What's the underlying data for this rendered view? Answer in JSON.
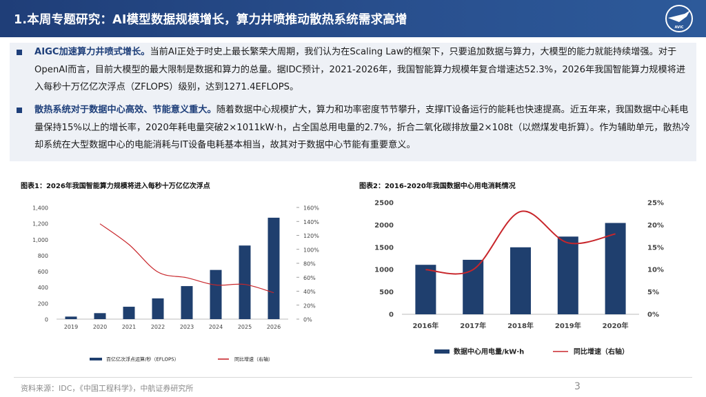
{
  "header": {
    "title": "1.本周专题研究：AI模型数据规模增长，算力井喷推动散热系统需求高增",
    "logo_text": "AVIC"
  },
  "bullets": [
    {
      "highlight": "AIGC加速算力井喷式增长。",
      "text": "当前AI正处于时史上最长繁荣大周期，我们认为在Scaling Law的框架下，只要追加数据与算力，大模型的能力就能持续增强。对于OpenAI而言，目前大模型的最大限制是数据和算力的总量。据IDC预计，2021-2026年，我国智能算力规模年复合增速达52.3%，2026年我国智能算力规模将进入每秒十万亿亿次浮点（ZFLOPS）级别，达到1271.4EFLOPS。"
    },
    {
      "highlight": "散热系统对于数据中心高效、节能意义重大。",
      "text": "随着数据中心规模扩大，算力和功率密度节节攀升，支撑IT设备运行的能耗也快速提高。近五年来，我国数据中心耗电量保持15%以上的增长率，2020年耗电量突破2×1011kW·h，占全国总用电量的2.7%，折合二氧化碳排放量2×108t（以燃煤发电折算）。作为辅助单元，散热冷却系统在大型数据中心的电能消耗与IT设备电耗基本相当，故其对于数据中心节能有重要意义。"
    }
  ],
  "figures": {
    "fig1_title": "图表1：2026年我国智能算力规模将进入每秒十万亿亿次浮点",
    "fig2_title": "图表2：2016-2020年我国数据中心用电消耗情况"
  },
  "chart_data": [
    {
      "type": "bar",
      "title": "图表1：2026年我国智能算力规模将进入每秒十万亿亿次浮点",
      "categories": [
        "2019",
        "2020",
        "2021",
        "2022",
        "2023",
        "2024",
        "2025",
        "2026"
      ],
      "series": [
        {
          "name": "百亿亿次浮点运算/秒（EFLOPS）",
          "type": "bar",
          "axis": "left",
          "values": [
            31.7,
            75,
            155.2,
            259.9,
            414.1,
            616.6,
            922.8,
            1271.4
          ]
        },
        {
          "name": "同比增速（右轴）",
          "type": "line",
          "axis": "right",
          "values": [
            null,
            136.6,
            106.9,
            67.5,
            59.3,
            48.9,
            49.7,
            37.8
          ]
        }
      ],
      "left_ylim": [
        0,
        1400
      ],
      "left_ticks": [
        "0",
        "200",
        "400",
        "600",
        "800",
        "1,000",
        "1,200",
        "1,400"
      ],
      "right_ylim": [
        0,
        160
      ],
      "right_ticks": [
        "0%",
        "20%",
        "40%",
        "60%",
        "80%",
        "100%",
        "120%",
        "140%",
        "160%"
      ],
      "bar_color": "#1f3f6e",
      "line_color": "#c8262b"
    },
    {
      "type": "bar",
      "title": "图表2：2016-2020年我国数据中心用电消耗情况",
      "categories": [
        "2016年",
        "2017年",
        "2018年",
        "2019年",
        "2020年"
      ],
      "series": [
        {
          "name": "数据中心用电量/kW·h",
          "type": "bar",
          "axis": "left",
          "values": [
            1108,
            1220,
            1500,
            1740,
            2045
          ]
        },
        {
          "name": "同比增速（右轴）",
          "type": "line",
          "axis": "right",
          "values": [
            10,
            10,
            23,
            16,
            18
          ]
        }
      ],
      "left_ylim": [
        0,
        2500
      ],
      "left_ticks": [
        "0",
        "500",
        "1000",
        "1500",
        "2000",
        "2500"
      ],
      "right_ylim": [
        0,
        25
      ],
      "right_ticks": [
        "0%",
        "5%",
        "10%",
        "15%",
        "20%",
        "25%"
      ],
      "bar_color": "#1f3f6e",
      "line_color": "#c8262b"
    }
  ],
  "footer": {
    "source": "资料来源：IDC，《中国工程科学》，中航证券研究所",
    "page": "3"
  }
}
